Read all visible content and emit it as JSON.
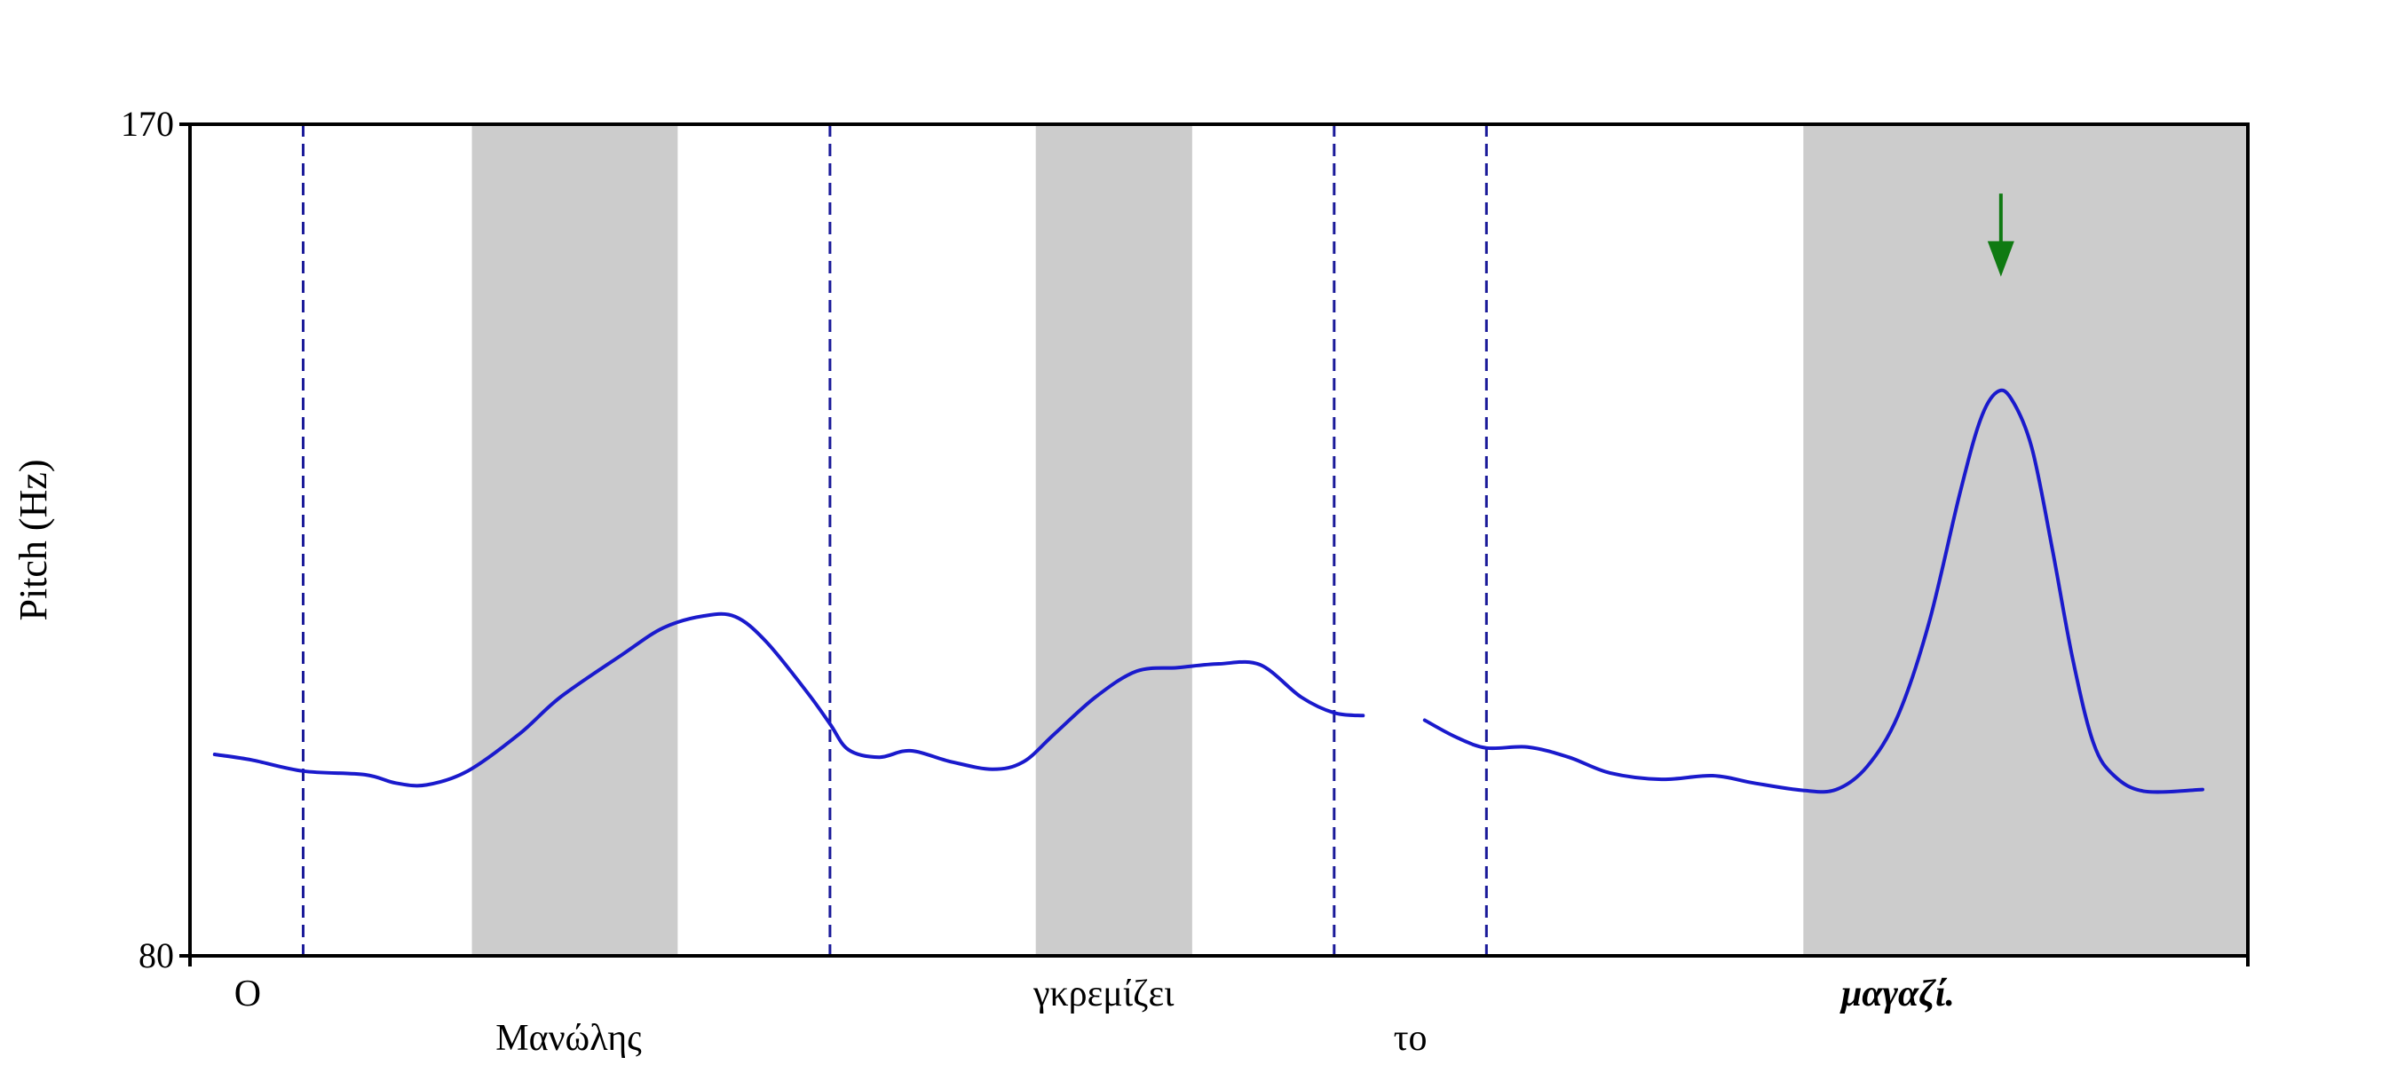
{
  "chart_data": {
    "type": "line",
    "title": "",
    "xlabel": "",
    "ylabel": "Pitch (Hz)",
    "ylim": [
      80,
      170
    ],
    "xlim": [
      0,
      1
    ],
    "y_ticks": [
      "80",
      "170"
    ],
    "grid": false,
    "colors": {
      "line": "#1a1acc",
      "boundary": "#1a1a99",
      "shade": "#cccccc",
      "arrow": "#0f7a12",
      "axis": "#000000"
    },
    "boundaries": [
      0.055,
      0.311,
      0.556,
      0.63
    ],
    "shaded_regions": [
      [
        0.137,
        0.237
      ],
      [
        0.411,
        0.487
      ],
      [
        0.784,
        1.0
      ]
    ],
    "words": [
      {
        "text": "Ο",
        "x": 0.028,
        "row": 0,
        "emphasis": false
      },
      {
        "text": "Μανώλης",
        "x": 0.184,
        "row": 1,
        "emphasis": false
      },
      {
        "text": "γκρεμίζει",
        "x": 0.444,
        "row": 0,
        "emphasis": false
      },
      {
        "text": "το",
        "x": 0.593,
        "row": 1,
        "emphasis": false
      },
      {
        "text": "μαγαζί.",
        "x": 0.83,
        "row": 0,
        "emphasis": true
      }
    ],
    "arrow": {
      "x": 0.88,
      "y_top": 162.5,
      "y_tip": 153.5
    },
    "series": [
      {
        "segments": [
          [
            [
              0.012,
              101.8
            ],
            [
              0.03,
              101.2
            ],
            [
              0.055,
              100.0
            ],
            [
              0.085,
              99.6
            ],
            [
              0.1,
              98.7
            ],
            [
              0.115,
              98.5
            ],
            [
              0.135,
              100.0
            ],
            [
              0.16,
              104.0
            ],
            [
              0.18,
              108.0
            ],
            [
              0.21,
              112.6
            ],
            [
              0.23,
              115.5
            ],
            [
              0.25,
              116.8
            ],
            [
              0.265,
              116.7
            ],
            [
              0.28,
              114.0
            ],
            [
              0.3,
              108.5
            ],
            [
              0.311,
              105.1
            ],
            [
              0.32,
              102.3
            ],
            [
              0.335,
              101.5
            ],
            [
              0.35,
              102.2
            ],
            [
              0.37,
              101.0
            ],
            [
              0.39,
              100.2
            ],
            [
              0.405,
              101.0
            ],
            [
              0.42,
              104.0
            ],
            [
              0.44,
              108.0
            ],
            [
              0.46,
              110.8
            ],
            [
              0.48,
              111.2
            ],
            [
              0.5,
              111.6
            ],
            [
              0.52,
              111.5
            ],
            [
              0.54,
              108.0
            ],
            [
              0.556,
              106.3
            ],
            [
              0.57,
              106.0
            ]
          ],
          [
            [
              0.6,
              105.5
            ],
            [
              0.615,
              103.7
            ],
            [
              0.63,
              102.5
            ],
            [
              0.65,
              102.6
            ],
            [
              0.67,
              101.5
            ],
            [
              0.69,
              99.8
            ],
            [
              0.715,
              99.1
            ],
            [
              0.74,
              99.5
            ],
            [
              0.76,
              98.7
            ],
            [
              0.784,
              97.9
            ],
            [
              0.8,
              98.0
            ],
            [
              0.815,
              100.5
            ],
            [
              0.83,
              106.0
            ],
            [
              0.845,
              116.0
            ],
            [
              0.86,
              130.0
            ],
            [
              0.87,
              138.0
            ],
            [
              0.878,
              141.0
            ],
            [
              0.885,
              140.3
            ],
            [
              0.895,
              135.0
            ],
            [
              0.905,
              124.0
            ],
            [
              0.915,
              112.0
            ],
            [
              0.925,
              103.0
            ],
            [
              0.935,
              99.5
            ],
            [
              0.95,
              97.8
            ],
            [
              0.978,
              98.0
            ]
          ]
        ]
      }
    ]
  }
}
